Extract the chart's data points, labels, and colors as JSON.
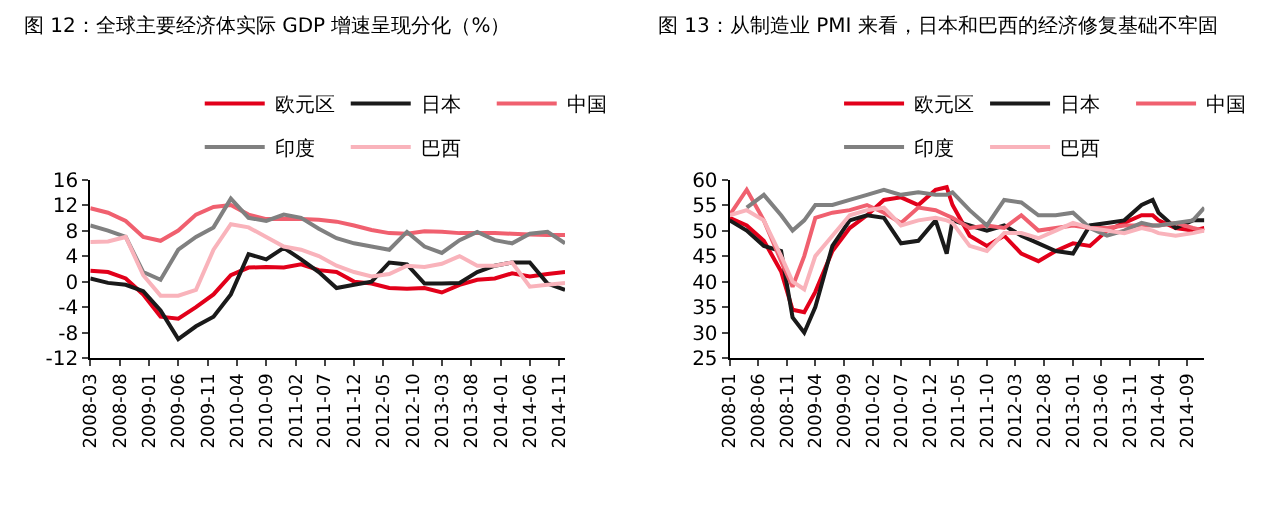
{
  "chart_data": [
    {
      "type": "line",
      "title": "图 12：全球主要经济体实际 GDP 增速呈现分化（%）",
      "x": [
        "2008-03",
        "2008-06",
        "2008-09",
        "2008-12",
        "2009-03",
        "2009-06",
        "2009-09",
        "2009-12",
        "2010-03",
        "2010-06",
        "2010-09",
        "2010-12",
        "2011-03",
        "2011-06",
        "2011-09",
        "2011-12",
        "2012-03",
        "2012-06",
        "2012-09",
        "2012-12",
        "2013-03",
        "2013-06",
        "2013-09",
        "2013-12",
        "2014-03",
        "2014-06",
        "2014-09",
        "2014-12"
      ],
      "series": [
        {
          "name": "欧元区",
          "color": "#e2001a",
          "values": [
            1.7,
            1.5,
            0.5,
            -2,
            -5.5,
            -5.8,
            -4,
            -2,
            1,
            2.2,
            2.3,
            2.2,
            2.7,
            1.8,
            1.5,
            0,
            -0.3,
            -1,
            -1.1,
            -1,
            -1.7,
            -0.5,
            0.3,
            0.5,
            1.3,
            0.8,
            1.2,
            1.5
          ]
        },
        {
          "name": "日本",
          "color": "#1a1a1a",
          "values": [
            0.5,
            -0.2,
            -0.5,
            -1.5,
            -4.5,
            -9,
            -7,
            -5.5,
            -2,
            4.3,
            3.5,
            5.3,
            3.5,
            1.5,
            -1,
            -0.5,
            0,
            3,
            2.7,
            -0.3,
            -0.3,
            -0.2,
            1.5,
            2.5,
            3,
            3,
            -0.3,
            -1.3
          ]
        },
        {
          "name": "中国",
          "color": "#f0606f",
          "values": [
            11.5,
            10.8,
            9.5,
            7,
            6.4,
            8,
            10.5,
            11.7,
            12,
            10.5,
            9.8,
            9.8,
            9.8,
            9.7,
            9.4,
            8.8,
            8.1,
            7.6,
            7.5,
            7.9,
            7.8,
            7.6,
            7.6,
            7.6,
            7.5,
            7.4,
            7.3,
            7.3
          ]
        },
        {
          "name": "印度",
          "color": "#808080",
          "values": [
            8.8,
            8,
            7,
            1.5,
            0.3,
            5,
            7,
            8.5,
            13,
            10,
            9.5,
            10.5,
            10,
            8.3,
            6.8,
            6,
            5.5,
            5,
            7.8,
            5.5,
            4.5,
            6.5,
            7.8,
            6.5,
            6,
            7.5,
            7.8,
            6
          ]
        },
        {
          "name": "巴西",
          "color": "#f9b3bb",
          "values": [
            6.2,
            6.3,
            7,
            1,
            -2.2,
            -2.2,
            -1.3,
            5,
            9,
            8.5,
            7,
            5.5,
            5,
            4,
            2.5,
            1.5,
            0.8,
            1.2,
            2.5,
            2.3,
            2.8,
            4,
            2.5,
            2.5,
            3,
            -0.8,
            -0.5,
            -0.2
          ]
        }
      ],
      "xlim": [
        "2008-03",
        "2014-12"
      ],
      "xticks": [
        "2008-03",
        "2008-08",
        "2009-01",
        "2009-06",
        "2009-11",
        "2010-04",
        "2010-09",
        "2011-02",
        "2011-07",
        "2011-12",
        "2012-05",
        "2012-10",
        "2013-03",
        "2013-08",
        "2014-01",
        "2014-06",
        "2014-11"
      ],
      "ylim": [
        -12,
        16
      ],
      "yticks": [
        -12,
        -8,
        -4,
        0,
        4,
        8,
        12,
        16
      ],
      "grid": false,
      "legend": "top",
      "marker": "none",
      "line_style": "solid"
    },
    {
      "type": "line",
      "title": "图 13：从制造业 PMI 来看，日本和巴西的经济修复基础不牢固",
      "x": [
        "2008-01",
        "2008-04",
        "2008-07",
        "2008-10",
        "2008-12",
        "2009-02",
        "2009-04",
        "2009-07",
        "2009-10",
        "2010-01",
        "2010-04",
        "2010-07",
        "2010-10",
        "2011-01",
        "2011-03",
        "2011-04",
        "2011-07",
        "2011-10",
        "2012-01",
        "2012-04",
        "2012-07",
        "2012-10",
        "2013-01",
        "2013-04",
        "2013-07",
        "2013-10",
        "2014-01",
        "2014-03",
        "2014-04",
        "2014-07",
        "2014-10",
        "2014-12"
      ],
      "series": [
        {
          "name": "欧元区",
          "color": "#e2001a",
          "values": [
            52.5,
            51,
            48,
            42,
            34.5,
            34,
            38,
            46,
            50.5,
            53,
            56,
            56.5,
            55,
            58,
            58.5,
            55,
            49,
            47,
            49,
            45.5,
            44,
            46,
            47.5,
            47,
            50,
            51.5,
            53,
            53,
            52,
            50.5,
            50,
            50.5
          ]
        },
        {
          "name": "日本",
          "color": "#1a1a1a",
          "values": [
            52,
            50,
            47,
            46,
            33,
            30,
            35,
            47,
            52,
            53,
            52.5,
            47.5,
            48,
            52,
            45.5,
            52,
            51,
            50,
            51,
            49,
            47.5,
            46,
            45.5,
            51,
            51.5,
            52,
            55,
            56,
            53.5,
            50.5,
            52,
            52
          ]
        },
        {
          "name": "中国",
          "color": "#f0606f",
          "values": [
            53,
            58,
            52,
            44,
            39,
            45,
            52.5,
            53.5,
            54,
            55,
            53.5,
            51.5,
            54.5,
            54,
            53,
            52.5,
            50.5,
            51,
            50.5,
            53,
            50,
            50.5,
            51,
            50.5,
            50.5,
            51,
            51,
            51,
            51,
            51.5,
            50.5,
            50
          ]
        },
        {
          "name": "印度",
          "color": "#808080",
          "values": [
            null,
            54.5,
            57,
            53,
            50,
            52,
            55,
            55,
            56,
            57,
            58,
            57,
            57.5,
            57,
            57,
            57.5,
            54,
            51,
            56,
            55.5,
            53,
            53,
            53.5,
            50.5,
            49,
            50,
            51.5,
            51,
            51,
            51.5,
            52,
            54.5
          ]
        },
        {
          "name": "巴西",
          "color": "#f9b3bb",
          "values": [
            53,
            54,
            52,
            45,
            40,
            38.5,
            45,
            49,
            53,
            54,
            54.5,
            51,
            52,
            52.5,
            52,
            51.5,
            47,
            46,
            49.5,
            49.5,
            48.5,
            50,
            51.5,
            50.5,
            50,
            49.5,
            50.5,
            50,
            49.5,
            49,
            49.5,
            50
          ]
        }
      ],
      "xlim": [
        "2008-01",
        "2014-12"
      ],
      "xticks": [
        "2008-01",
        "2008-06",
        "2008-11",
        "2009-04",
        "2009-09",
        "2010-02",
        "2010-07",
        "2010-12",
        "2011-05",
        "2011-10",
        "2012-03",
        "2012-08",
        "2013-01",
        "2013-06",
        "2013-11",
        "2014-04",
        "2014-09"
      ],
      "ylim": [
        25,
        60
      ],
      "yticks": [
        25,
        30,
        35,
        40,
        45,
        50,
        55,
        60
      ],
      "grid": false,
      "legend": "top",
      "marker": "none",
      "line_style": "solid"
    }
  ]
}
